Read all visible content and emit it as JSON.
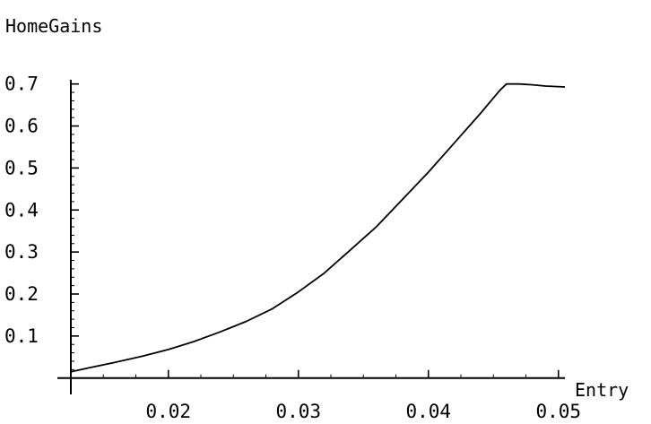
{
  "chart_data": {
    "type": "line",
    "ylabel": "HomeGains",
    "xlabel": "Entry",
    "xlim": [
      0.0125,
      0.0505
    ],
    "ylim": [
      -0.007,
      0.71
    ],
    "x_ticks": [
      0.02,
      0.03,
      0.04,
      0.05
    ],
    "x_tick_labels": [
      "0.02",
      "0.03",
      "0.04",
      "0.05"
    ],
    "y_ticks": [
      0.1,
      0.2,
      0.3,
      0.4,
      0.5,
      0.6,
      0.7
    ],
    "y_tick_labels": [
      "0.1",
      "0.2",
      "0.3",
      "0.4",
      "0.5",
      "0.6",
      "0.7"
    ],
    "grid": false,
    "series": [
      {
        "x": [
          0.0125,
          0.014,
          0.016,
          0.018,
          0.02,
          0.022,
          0.024,
          0.026,
          0.028,
          0.03,
          0.032,
          0.034,
          0.036,
          0.038,
          0.04,
          0.042,
          0.044,
          0.0455,
          0.046,
          0.047,
          0.048,
          0.049,
          0.0505
        ],
        "y": [
          0.015,
          0.025,
          0.038,
          0.052,
          0.068,
          0.087,
          0.11,
          0.135,
          0.165,
          0.205,
          0.25,
          0.305,
          0.36,
          0.425,
          0.49,
          0.56,
          0.63,
          0.685,
          0.7,
          0.7,
          0.698,
          0.695,
          0.693
        ]
      }
    ]
  }
}
